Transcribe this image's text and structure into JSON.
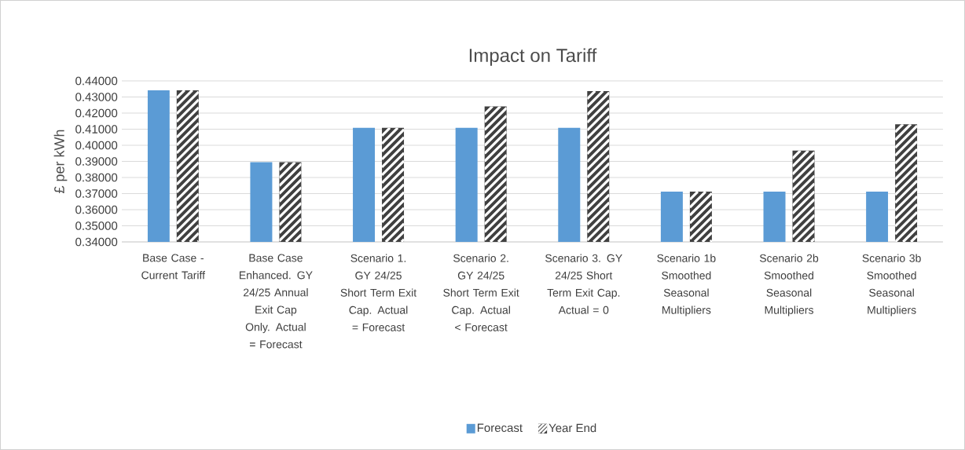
{
  "chart_data": {
    "type": "bar",
    "title": "Impact on Tariff",
    "ylabel": "£ per kWh",
    "categories": [
      "Base Case - Current Tariff",
      "Base Case Enhanced. GY 24/25 Annual Exit Cap Only. Actual = Forecast",
      "Scenario 1. GY 24/25 Short Term Exit Cap. Actual = Forecast",
      "Scenario 2. GY 24/25 Short Term Exit Cap. Actual < Forecast",
      "Scenario 3. GY 24/25 Short Term Exit Cap. Actual = 0",
      "Scenario 1b Smoothed Seasonal Multipliers",
      "Scenario 2b Smoothed Seasonal Multipliers",
      "Scenario 3b Smoothed Seasonal Multipliers"
    ],
    "series": [
      {
        "name": "Forecast",
        "color": "#5b9bd5",
        "values": [
          0.4342,
          0.3895,
          0.4108,
          0.4108,
          0.4108,
          0.3712,
          0.3712,
          0.3712
        ]
      },
      {
        "name": "Year End",
        "color": "#404040",
        "values": [
          0.4342,
          0.3895,
          0.4108,
          0.4242,
          0.4337,
          0.3712,
          0.3967,
          0.4131
        ]
      }
    ],
    "ylim": [
      0.34,
      0.44
    ],
    "yticks": [
      {
        "value": 0.34,
        "label": "0.34000"
      },
      {
        "value": 0.35,
        "label": "0.35000"
      },
      {
        "value": 0.36,
        "label": "0.36000"
      },
      {
        "value": 0.37,
        "label": "0.37000"
      },
      {
        "value": 0.38,
        "label": "0.38000"
      },
      {
        "value": 0.39,
        "label": "0.39000"
      },
      {
        "value": 0.4,
        "label": "0.40000"
      },
      {
        "value": 0.41,
        "label": "0.41000"
      },
      {
        "value": 0.42,
        "label": "0.42000"
      },
      {
        "value": 0.43,
        "label": "0.43000"
      },
      {
        "value": 0.44,
        "label": "0.44000"
      }
    ],
    "grid": "y",
    "legend": "bottom"
  }
}
